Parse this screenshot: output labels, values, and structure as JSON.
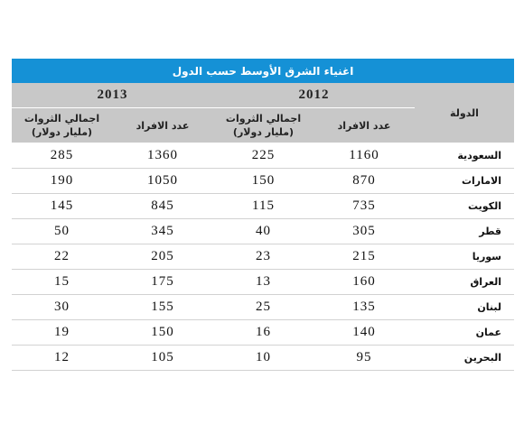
{
  "table": {
    "title": "اغنياء الشرق الأوسط حسب الدول",
    "country_header": "الدولة",
    "years": [
      "2012",
      "2013"
    ],
    "col_count": "عدد الافراد",
    "col_wealth_line1": "اجمالي الثروات",
    "col_wealth_line2": "(مليار دولار)",
    "rows": [
      {
        "country": "السعودية",
        "c2012": "1160",
        "w2012": "225",
        "c2013": "1360",
        "w2013": "285"
      },
      {
        "country": "الامارات",
        "c2012": "870",
        "w2012": "150",
        "c2013": "1050",
        "w2013": "190"
      },
      {
        "country": "الكويت",
        "c2012": "735",
        "w2012": "115",
        "c2013": "845",
        "w2013": "145"
      },
      {
        "country": "قطر",
        "c2012": "305",
        "w2012": "40",
        "c2013": "345",
        "w2013": "50"
      },
      {
        "country": "سوريا",
        "c2012": "215",
        "w2012": "23",
        "c2013": "205",
        "w2013": "22"
      },
      {
        "country": "العراق",
        "c2012": "160",
        "w2012": "13",
        "c2013": "175",
        "w2013": "15"
      },
      {
        "country": "لبنان",
        "c2012": "135",
        "w2012": "25",
        "c2013": "155",
        "w2013": "30"
      },
      {
        "country": "عمان",
        "c2012": "140",
        "w2012": "16",
        "c2013": "150",
        "w2013": "19"
      },
      {
        "country": "البحرين",
        "c2012": "95",
        "w2012": "10",
        "c2013": "105",
        "w2013": "12"
      }
    ]
  }
}
